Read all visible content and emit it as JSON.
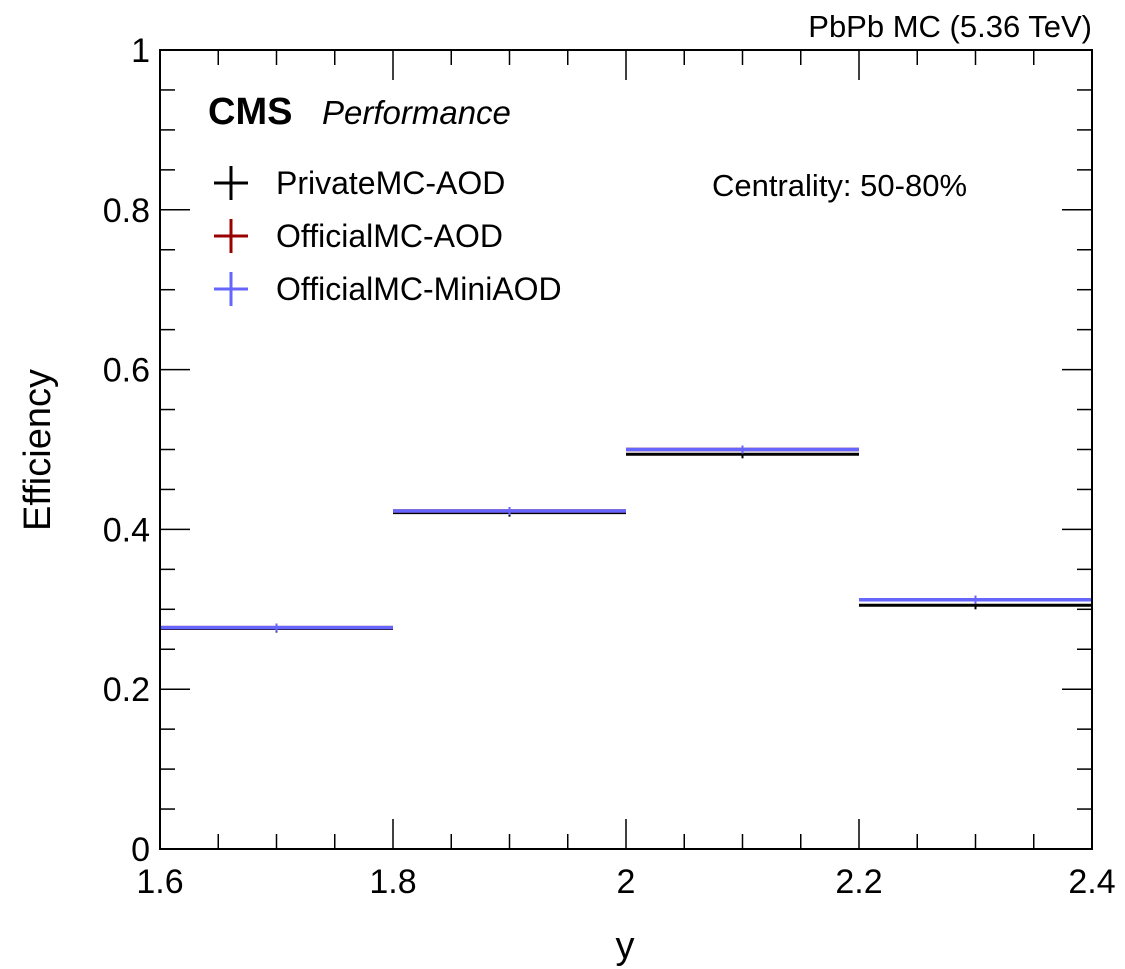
{
  "header": {
    "right_label": "PbPb MC (5.36 TeV)",
    "experiment": "CMS",
    "status": "Performance",
    "annotation": "Centrality: 50-80%"
  },
  "chart_data": {
    "type": "line",
    "xlabel": "y",
    "ylabel": "Efficiency",
    "xlim": [
      1.6,
      2.4
    ],
    "ylim": [
      0,
      1
    ],
    "x_ticks": [
      "1.6",
      "1.8",
      "2",
      "2.2",
      "2.4"
    ],
    "y_ticks": [
      "0",
      "0.2",
      "0.4",
      "0.6",
      "0.8",
      "1"
    ],
    "grid": false,
    "legend_position": "top-left",
    "bins": [
      [
        1.6,
        1.8
      ],
      [
        1.8,
        2.0
      ],
      [
        2.0,
        2.2
      ],
      [
        2.2,
        2.4
      ]
    ],
    "series": [
      {
        "name": "PrivateMC-AOD",
        "color": "#000000",
        "values": [
          0.276,
          0.421,
          0.494,
          0.305
        ]
      },
      {
        "name": "OfficialMC-AOD",
        "color": "#990000",
        "values": [
          0.277,
          0.423,
          0.5,
          0.312
        ]
      },
      {
        "name": "OfficialMC-MiniAOD",
        "color": "#6666ff",
        "values": [
          0.277,
          0.423,
          0.5,
          0.312
        ]
      }
    ]
  }
}
